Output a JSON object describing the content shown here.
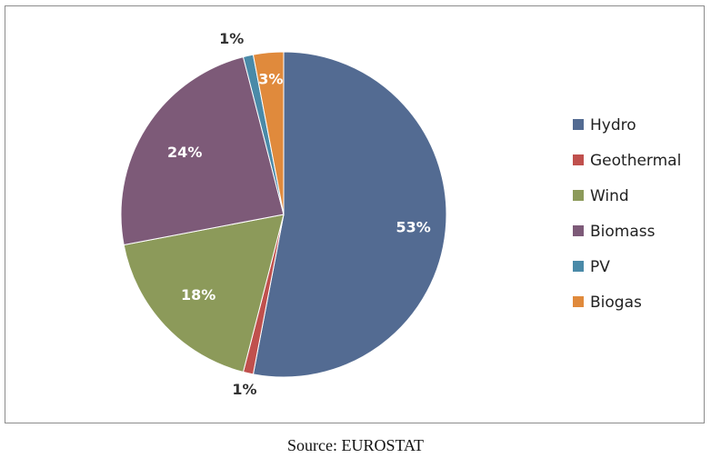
{
  "chart_data": {
    "type": "pie",
    "categories": [
      "Hydro",
      "Geothermal",
      "Wind",
      "Biomass",
      "PV",
      "Biogas"
    ],
    "values": [
      53,
      1,
      18,
      24,
      1,
      3
    ],
    "labels": [
      "53%",
      "1%",
      "18%",
      "24%",
      "1%",
      "3%"
    ],
    "colors": [
      "#536b92",
      "#c0504d",
      "#8c9a5a",
      "#7d5a78",
      "#4a8aa8",
      "#e08a3c"
    ],
    "legend_position": "right"
  },
  "caption": "Source: EUROSTAT"
}
